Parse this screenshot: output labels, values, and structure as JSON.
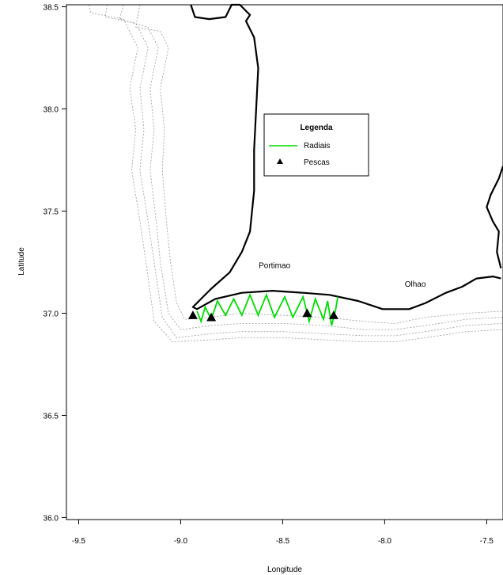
{
  "chart_data": {
    "type": "map",
    "xlabel": "Longitude",
    "ylabel": "Latitude",
    "xlim": [
      -9.56,
      -7.42
    ],
    "ylim": [
      35.99,
      38.51
    ],
    "x_ticks": [
      -9.5,
      -9.0,
      -8.5,
      -8.0,
      -7.5
    ],
    "x_tick_labels": [
      "-9.5",
      "-9.0",
      "-8.5",
      "-8.0",
      "-7.5"
    ],
    "y_ticks": [
      36.0,
      36.5,
      37.0,
      37.5,
      38.0,
      38.5
    ],
    "y_tick_labels": [
      "36.0",
      "36.5",
      "37.0",
      "37.5",
      "38.0",
      "38.5"
    ],
    "legend": {
      "title": "Legenda",
      "position": "upper-center",
      "entries": [
        {
          "label": "Radiais",
          "symbol": "line",
          "color": "#00dd00"
        },
        {
          "label": "Pescas",
          "symbol": "triangle",
          "color": "#000000"
        }
      ]
    },
    "place_labels": [
      {
        "text": "Portimao",
        "lon": -8.54,
        "lat": 37.22
      },
      {
        "text": "Olhao",
        "lon": -7.85,
        "lat": 37.13
      }
    ],
    "coastline": [
      [
        -8.95,
        38.51
      ],
      [
        -8.93,
        38.45
      ],
      [
        -8.86,
        38.44
      ],
      [
        -8.78,
        38.45
      ],
      [
        -8.75,
        38.51
      ],
      [
        -8.71,
        38.51
      ],
      [
        -8.66,
        38.46
      ],
      [
        -8.68,
        38.43
      ],
      [
        -8.64,
        38.35
      ],
      [
        -8.62,
        38.2
      ],
      [
        -8.63,
        38.0
      ],
      [
        -8.64,
        37.8
      ],
      [
        -8.64,
        37.6
      ],
      [
        -8.66,
        37.4
      ],
      [
        -8.7,
        37.3
      ],
      [
        -8.76,
        37.2
      ],
      [
        -8.85,
        37.12
      ],
      [
        -8.9,
        37.07
      ],
      [
        -8.94,
        37.03
      ],
      [
        -8.92,
        37.02
      ],
      [
        -8.83,
        37.07
      ],
      [
        -8.7,
        37.1
      ],
      [
        -8.55,
        37.11
      ],
      [
        -8.4,
        37.1
      ],
      [
        -8.27,
        37.09
      ],
      [
        -8.13,
        37.06
      ],
      [
        -8.01,
        37.02
      ],
      [
        -7.88,
        37.02
      ],
      [
        -7.8,
        37.05
      ],
      [
        -7.7,
        37.1
      ],
      [
        -7.62,
        37.13
      ],
      [
        -7.55,
        37.17
      ],
      [
        -7.47,
        37.18
      ],
      [
        -7.43,
        37.17
      ]
    ],
    "coastline_east": [
      [
        -7.43,
        37.22
      ],
      [
        -7.45,
        37.3
      ],
      [
        -7.44,
        37.4
      ],
      [
        -7.47,
        37.45
      ],
      [
        -7.5,
        37.52
      ],
      [
        -7.48,
        37.58
      ],
      [
        -7.44,
        37.66
      ],
      [
        -7.42,
        37.72
      ]
    ],
    "bathymetry": [
      [
        [
          -9.2,
          38.51
        ],
        [
          -9.22,
          38.4
        ],
        [
          -9.1,
          38.38
        ],
        [
          -9.06,
          38.3
        ],
        [
          -9.1,
          38.1
        ],
        [
          -9.08,
          37.9
        ],
        [
          -9.09,
          37.7
        ],
        [
          -9.07,
          37.45
        ],
        [
          -9.05,
          37.25
        ],
        [
          -9.02,
          37.05
        ],
        [
          -8.98,
          36.97
        ],
        [
          -8.85,
          36.98
        ],
        [
          -8.7,
          37.0
        ],
        [
          -8.5,
          36.99
        ],
        [
          -8.3,
          36.98
        ],
        [
          -8.1,
          36.96
        ],
        [
          -7.95,
          36.95
        ],
        [
          -7.8,
          36.98
        ],
        [
          -7.6,
          37.0
        ],
        [
          -7.42,
          37.01
        ]
      ],
      [
        [
          -9.28,
          38.51
        ],
        [
          -9.3,
          38.44
        ],
        [
          -9.16,
          38.4
        ],
        [
          -9.11,
          38.3
        ],
        [
          -9.15,
          38.1
        ],
        [
          -9.13,
          37.9
        ],
        [
          -9.15,
          37.7
        ],
        [
          -9.12,
          37.45
        ],
        [
          -9.1,
          37.25
        ],
        [
          -9.06,
          37.0
        ],
        [
          -9.0,
          36.92
        ],
        [
          -8.85,
          36.94
        ],
        [
          -8.7,
          36.95
        ],
        [
          -8.5,
          36.95
        ],
        [
          -8.3,
          36.94
        ],
        [
          -8.1,
          36.92
        ],
        [
          -7.95,
          36.92
        ],
        [
          -7.8,
          36.94
        ],
        [
          -7.6,
          36.97
        ],
        [
          -7.42,
          36.98
        ]
      ],
      [
        [
          -9.36,
          38.51
        ],
        [
          -9.37,
          38.45
        ],
        [
          -9.22,
          38.42
        ],
        [
          -9.16,
          38.3
        ],
        [
          -9.2,
          38.1
        ],
        [
          -9.18,
          37.9
        ],
        [
          -9.2,
          37.7
        ],
        [
          -9.16,
          37.45
        ],
        [
          -9.13,
          37.25
        ],
        [
          -9.09,
          36.98
        ],
        [
          -9.02,
          36.88
        ],
        [
          -8.85,
          36.9
        ],
        [
          -8.7,
          36.91
        ],
        [
          -8.5,
          36.91
        ],
        [
          -8.3,
          36.9
        ],
        [
          -8.1,
          36.89
        ],
        [
          -7.95,
          36.89
        ],
        [
          -7.8,
          36.91
        ],
        [
          -7.6,
          36.94
        ],
        [
          -7.42,
          36.95
        ]
      ],
      [
        [
          -9.45,
          38.51
        ],
        [
          -9.44,
          38.47
        ],
        [
          -9.28,
          38.44
        ],
        [
          -9.21,
          38.3
        ],
        [
          -9.25,
          38.1
        ],
        [
          -9.22,
          37.9
        ],
        [
          -9.24,
          37.7
        ],
        [
          -9.2,
          37.45
        ],
        [
          -9.17,
          37.25
        ],
        [
          -9.13,
          36.96
        ],
        [
          -9.04,
          36.86
        ],
        [
          -8.85,
          36.87
        ],
        [
          -8.7,
          36.88
        ],
        [
          -8.5,
          36.88
        ],
        [
          -8.3,
          36.87
        ],
        [
          -8.1,
          36.86
        ],
        [
          -7.95,
          36.86
        ],
        [
          -7.8,
          36.88
        ],
        [
          -7.6,
          36.91
        ],
        [
          -7.42,
          36.92
        ]
      ]
    ],
    "radiais": [
      [
        -8.92,
        37.01
      ],
      [
        -8.9,
        36.96
      ],
      [
        -8.88,
        37.03
      ],
      [
        -8.85,
        36.97
      ],
      [
        -8.82,
        37.06
      ],
      [
        -8.78,
        36.99
      ],
      [
        -8.74,
        37.07
      ],
      [
        -8.7,
        36.99
      ],
      [
        -8.66,
        37.09
      ],
      [
        -8.62,
        36.99
      ],
      [
        -8.58,
        37.09
      ],
      [
        -8.54,
        36.98
      ],
      [
        -8.49,
        37.08
      ],
      [
        -8.45,
        36.98
      ],
      [
        -8.4,
        37.08
      ],
      [
        -8.37,
        36.96
      ],
      [
        -8.34,
        37.07
      ],
      [
        -8.3,
        36.97
      ],
      [
        -8.28,
        37.06
      ],
      [
        -8.26,
        36.94
      ],
      [
        -8.24,
        37.02
      ],
      [
        -8.23,
        37.08
      ]
    ],
    "pescas": [
      {
        "lon": -8.94,
        "lat": 36.99
      },
      {
        "lon": -8.85,
        "lat": 36.98
      },
      {
        "lon": -8.38,
        "lat": 37.0
      },
      {
        "lon": -8.25,
        "lat": 36.99
      }
    ]
  }
}
